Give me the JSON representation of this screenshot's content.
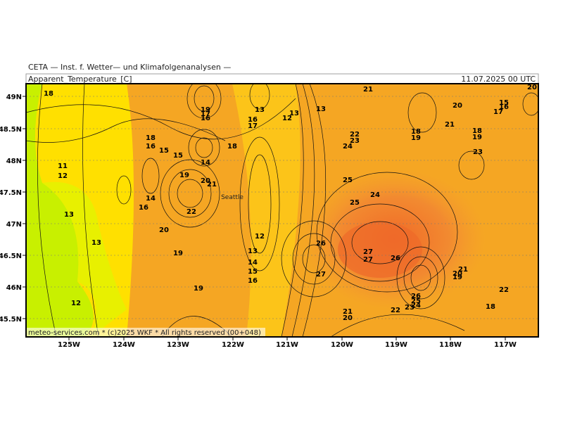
{
  "header": {
    "title": "CETA — Inst. f. Wetter— und Klimafolgenanalysen —",
    "field": "Apparent_Temperature_[C]",
    "valid": "11.07.2025 00 UTC"
  },
  "axes": {
    "lon": [
      "125W",
      "124W",
      "123W",
      "122W",
      "121W",
      "120W",
      "119W",
      "118W",
      "117W"
    ],
    "lat": [
      "49N",
      "48.5N",
      "48N",
      "47.5N",
      "47N",
      "46.5N",
      "46N",
      "45.5N"
    ]
  },
  "places": [
    "Seattle"
  ],
  "footer": "meteo-services.com * (c)2025 WKF * All rights reserved (00+048)",
  "contour_labels": [
    18,
    19,
    17,
    16,
    13,
    16,
    17,
    12,
    13,
    13,
    21,
    20,
    20,
    15,
    16,
    17,
    21,
    18,
    19,
    18,
    19,
    22,
    23,
    24,
    23,
    18,
    16,
    15,
    15,
    18,
    11,
    12,
    14,
    19,
    20,
    21,
    25,
    24,
    25,
    14,
    16,
    22,
    13,
    20,
    12,
    13,
    26,
    27,
    27,
    26,
    19,
    13,
    14,
    15,
    16,
    27,
    21,
    20,
    19,
    19,
    22,
    26,
    25,
    24,
    12,
    18,
    22,
    23,
    21,
    20
  ]
}
